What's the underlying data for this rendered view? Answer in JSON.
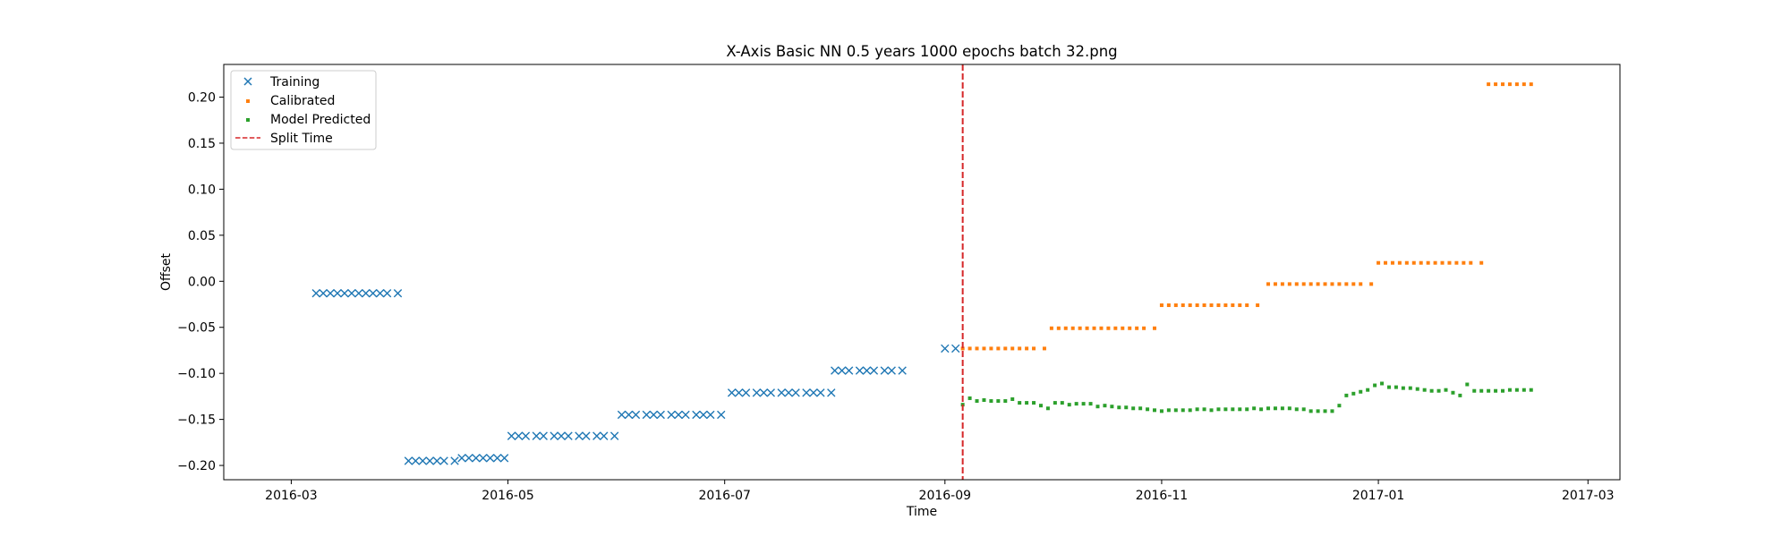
{
  "chart_data": {
    "type": "scatter",
    "title": "X-Axis Basic NN 0.5 years 1000 epochs batch 32.png",
    "xlabel": "Time",
    "ylabel": "Offset",
    "xlim": [
      "2016-02-11",
      "2017-03-10"
    ],
    "ylim": [
      -0.2155,
      0.2355
    ],
    "xticks": [
      {
        "date": "2016-03-01",
        "label": "2016-03"
      },
      {
        "date": "2016-05-01",
        "label": "2016-05"
      },
      {
        "date": "2016-07-01",
        "label": "2016-07"
      },
      {
        "date": "2016-09-01",
        "label": "2016-09"
      },
      {
        "date": "2016-11-01",
        "label": "2016-11"
      },
      {
        "date": "2017-01-01",
        "label": "2017-01"
      },
      {
        "date": "2017-03-01",
        "label": "2017-03"
      }
    ],
    "yticks": [
      {
        "value": 0.2,
        "label": "0.20"
      },
      {
        "value": 0.15,
        "label": "0.15"
      },
      {
        "value": 0.1,
        "label": "0.10"
      },
      {
        "value": 0.05,
        "label": "0.05"
      },
      {
        "value": 0.0,
        "label": "0.00"
      },
      {
        "value": -0.05,
        "label": "−0.05"
      },
      {
        "value": -0.1,
        "label": "−0.10"
      },
      {
        "value": -0.15,
        "label": "−0.15"
      },
      {
        "value": -0.2,
        "label": "−0.20"
      }
    ],
    "grid": false,
    "legend_position": "top-left",
    "split_time": "2016-09-06",
    "series": [
      {
        "name": "Training",
        "marker": "x",
        "color": "#1f77b4",
        "segments": [
          {
            "start": "2016-03-08",
            "end": "2016-03-31",
            "y": -0.013,
            "count": 12
          },
          {
            "start": "2016-04-03",
            "end": "2016-04-16",
            "y": -0.195,
            "count": 7
          },
          {
            "start": "2016-04-18",
            "end": "2016-04-30",
            "y": -0.192,
            "count": 7
          },
          {
            "start": "2016-05-02",
            "end": "2016-05-31",
            "y": -0.168,
            "count": 13
          },
          {
            "start": "2016-06-02",
            "end": "2016-06-30",
            "y": -0.145,
            "count": 13
          },
          {
            "start": "2016-07-03",
            "end": "2016-07-31",
            "y": -0.121,
            "count": 13
          },
          {
            "start": "2016-08-01",
            "end": "2016-08-20",
            "y": -0.097,
            "count": 9
          },
          {
            "start": "2016-09-01",
            "end": "2016-09-04",
            "y": -0.073,
            "count": 2
          }
        ]
      },
      {
        "name": "Calibrated",
        "marker": "square",
        "color": "#ff7f0e",
        "segments": [
          {
            "start": "2016-09-06",
            "end": "2016-09-29",
            "y": -0.073,
            "count": 12
          },
          {
            "start": "2016-10-01",
            "end": "2016-10-30",
            "y": -0.051,
            "count": 15
          },
          {
            "start": "2016-11-01",
            "end": "2016-11-28",
            "y": -0.026,
            "count": 14
          },
          {
            "start": "2016-12-01",
            "end": "2016-12-30",
            "y": -0.003,
            "count": 15
          },
          {
            "start": "2017-01-01",
            "end": "2017-01-30",
            "y": 0.02,
            "count": 15
          },
          {
            "start": "2017-02-01",
            "end": "2017-02-13",
            "y": 0.214,
            "count": 7
          }
        ]
      },
      {
        "name": "Model Predicted",
        "marker": "square",
        "color": "#2ca02c",
        "points": [
          [
            "2016-09-06",
            -0.134
          ],
          [
            "2016-09-08",
            -0.127
          ],
          [
            "2016-09-10",
            -0.13
          ],
          [
            "2016-09-12",
            -0.129
          ],
          [
            "2016-09-14",
            -0.13
          ],
          [
            "2016-09-16",
            -0.13
          ],
          [
            "2016-09-18",
            -0.13
          ],
          [
            "2016-09-20",
            -0.128
          ],
          [
            "2016-09-22",
            -0.132
          ],
          [
            "2016-09-24",
            -0.132
          ],
          [
            "2016-09-26",
            -0.132
          ],
          [
            "2016-09-28",
            -0.135
          ],
          [
            "2016-09-30",
            -0.138
          ],
          [
            "2016-10-02",
            -0.132
          ],
          [
            "2016-10-04",
            -0.132
          ],
          [
            "2016-10-06",
            -0.134
          ],
          [
            "2016-10-08",
            -0.133
          ],
          [
            "2016-10-10",
            -0.133
          ],
          [
            "2016-10-12",
            -0.133
          ],
          [
            "2016-10-14",
            -0.136
          ],
          [
            "2016-10-16",
            -0.135
          ],
          [
            "2016-10-18",
            -0.136
          ],
          [
            "2016-10-20",
            -0.137
          ],
          [
            "2016-10-22",
            -0.137
          ],
          [
            "2016-10-24",
            -0.138
          ],
          [
            "2016-10-26",
            -0.138
          ],
          [
            "2016-10-28",
            -0.139
          ],
          [
            "2016-10-30",
            -0.14
          ],
          [
            "2016-11-01",
            -0.141
          ],
          [
            "2016-11-03",
            -0.14
          ],
          [
            "2016-11-05",
            -0.14
          ],
          [
            "2016-11-07",
            -0.14
          ],
          [
            "2016-11-09",
            -0.14
          ],
          [
            "2016-11-11",
            -0.139
          ],
          [
            "2016-11-13",
            -0.139
          ],
          [
            "2016-11-15",
            -0.14
          ],
          [
            "2016-11-17",
            -0.139
          ],
          [
            "2016-11-19",
            -0.139
          ],
          [
            "2016-11-21",
            -0.139
          ],
          [
            "2016-11-23",
            -0.139
          ],
          [
            "2016-11-25",
            -0.139
          ],
          [
            "2016-11-27",
            -0.138
          ],
          [
            "2016-11-29",
            -0.139
          ],
          [
            "2016-12-01",
            -0.138
          ],
          [
            "2016-12-03",
            -0.138
          ],
          [
            "2016-12-05",
            -0.138
          ],
          [
            "2016-12-07",
            -0.138
          ],
          [
            "2016-12-09",
            -0.139
          ],
          [
            "2016-12-11",
            -0.139
          ],
          [
            "2016-12-13",
            -0.141
          ],
          [
            "2016-12-15",
            -0.141
          ],
          [
            "2016-12-17",
            -0.141
          ],
          [
            "2016-12-19",
            -0.141
          ],
          [
            "2016-12-21",
            -0.135
          ],
          [
            "2016-12-23",
            -0.124
          ],
          [
            "2016-12-25",
            -0.122
          ],
          [
            "2016-12-27",
            -0.12
          ],
          [
            "2016-12-29",
            -0.118
          ],
          [
            "2016-12-31",
            -0.113
          ],
          [
            "2017-01-02",
            -0.111
          ],
          [
            "2017-01-04",
            -0.115
          ],
          [
            "2017-01-06",
            -0.115
          ],
          [
            "2017-01-08",
            -0.116
          ],
          [
            "2017-01-10",
            -0.116
          ],
          [
            "2017-01-12",
            -0.117
          ],
          [
            "2017-01-14",
            -0.118
          ],
          [
            "2017-01-16",
            -0.119
          ],
          [
            "2017-01-18",
            -0.119
          ],
          [
            "2017-01-20",
            -0.118
          ],
          [
            "2017-01-22",
            -0.121
          ],
          [
            "2017-01-24",
            -0.124
          ],
          [
            "2017-01-26",
            -0.112
          ],
          [
            "2017-01-28",
            -0.119
          ],
          [
            "2017-01-30",
            -0.119
          ],
          [
            "2017-02-01",
            -0.119
          ],
          [
            "2017-02-03",
            -0.119
          ],
          [
            "2017-02-05",
            -0.119
          ],
          [
            "2017-02-07",
            -0.118
          ],
          [
            "2017-02-09",
            -0.118
          ],
          [
            "2017-02-11",
            -0.118
          ],
          [
            "2017-02-13",
            -0.118
          ]
        ]
      }
    ],
    "reference_lines": [
      {
        "name": "Split Time",
        "style": "dashed",
        "color": "#d62728"
      }
    ]
  }
}
